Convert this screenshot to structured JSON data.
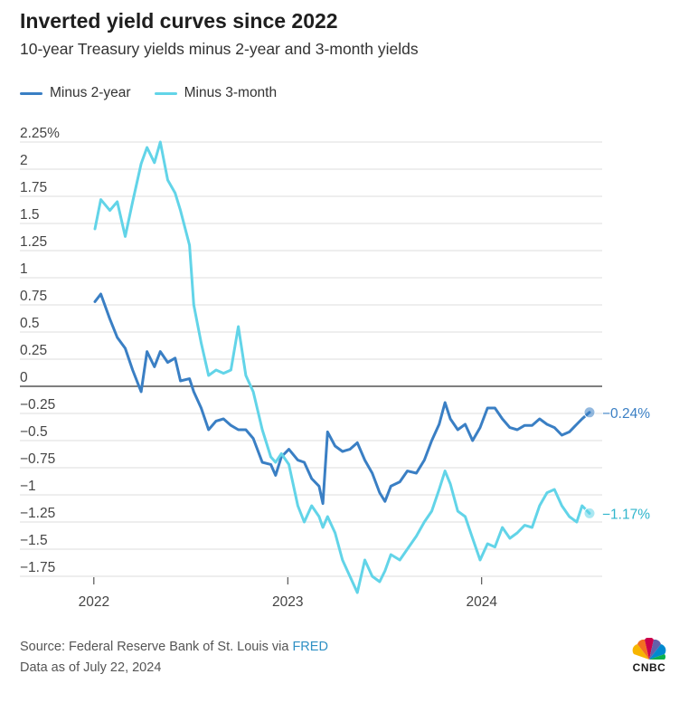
{
  "header": {
    "title": "Inverted yield curves since 2022",
    "subtitle": "10-year Treasury yields minus 2-year and 3-month yields"
  },
  "legend": [
    {
      "label": "Minus 2-year",
      "color": "#3a7fc4"
    },
    {
      "label": "Minus 3-month",
      "color": "#62d4e8"
    }
  ],
  "footer": {
    "source_prefix": "Source: Federal Reserve Bank of St. Louis via ",
    "source_link": "FRED",
    "data_note": "Data as of July 22, 2024"
  },
  "logo": {
    "text": "CNBC",
    "icon": "nbc-peacock-icon"
  },
  "chart_data": {
    "type": "line",
    "title": "Inverted yield curves since 2022",
    "subtitle": "10-year Treasury yields minus 2-year and 3-month yields",
    "xlabel": "",
    "ylabel": "",
    "x_ticks": [
      "2022",
      "2023",
      "2024"
    ],
    "y_ticks": [
      {
        "value": 2.25,
        "label": "2.25%"
      },
      {
        "value": 2,
        "label": "2"
      },
      {
        "value": 1.75,
        "label": "1.75"
      },
      {
        "value": 1.5,
        "label": "1.5"
      },
      {
        "value": 1.25,
        "label": "1.25"
      },
      {
        "value": 1,
        "label": "1"
      },
      {
        "value": 0.75,
        "label": "0.75"
      },
      {
        "value": 0.5,
        "label": "0.5"
      },
      {
        "value": 0.25,
        "label": "0.25"
      },
      {
        "value": 0,
        "label": "0"
      },
      {
        "value": -0.25,
        "label": "−0.25"
      },
      {
        "value": -0.5,
        "label": "−0.5"
      },
      {
        "value": -0.75,
        "label": "−0.75"
      },
      {
        "value": -1,
        "label": "−1"
      },
      {
        "value": -1.25,
        "label": "−1.25"
      },
      {
        "value": -1.5,
        "label": "−1.5"
      },
      {
        "value": -1.75,
        "label": "−1.75"
      }
    ],
    "ylim": [
      -1.9,
      2.3
    ],
    "xlim": [
      "2022-01-03",
      "2024-07-22"
    ],
    "grid": true,
    "legend_position": "top-left",
    "series": [
      {
        "name": "Minus 2-year",
        "color": "#3a7fc4",
        "end_label": "−0.24%",
        "points": [
          [
            "2022-01-03",
            0.78
          ],
          [
            "2022-01-14",
            0.85
          ],
          [
            "2022-01-31",
            0.62
          ],
          [
            "2022-02-14",
            0.45
          ],
          [
            "2022-03-01",
            0.35
          ],
          [
            "2022-03-15",
            0.15
          ],
          [
            "2022-03-31",
            -0.05
          ],
          [
            "2022-04-11",
            0.32
          ],
          [
            "2022-04-25",
            0.18
          ],
          [
            "2022-05-06",
            0.32
          ],
          [
            "2022-05-20",
            0.22
          ],
          [
            "2022-06-03",
            0.26
          ],
          [
            "2022-06-13",
            0.05
          ],
          [
            "2022-06-30",
            0.07
          ],
          [
            "2022-07-08",
            -0.05
          ],
          [
            "2022-07-22",
            -0.2
          ],
          [
            "2022-08-05",
            -0.4
          ],
          [
            "2022-08-19",
            -0.32
          ],
          [
            "2022-09-02",
            -0.3
          ],
          [
            "2022-09-16",
            -0.36
          ],
          [
            "2022-09-30",
            -0.4
          ],
          [
            "2022-10-14",
            -0.4
          ],
          [
            "2022-10-28",
            -0.48
          ],
          [
            "2022-11-14",
            -0.7
          ],
          [
            "2022-11-30",
            -0.72
          ],
          [
            "2022-12-09",
            -0.82
          ],
          [
            "2022-12-20",
            -0.65
          ],
          [
            "2023-01-03",
            -0.58
          ],
          [
            "2023-01-20",
            -0.68
          ],
          [
            "2023-02-01",
            -0.7
          ],
          [
            "2023-02-15",
            -0.85
          ],
          [
            "2023-03-01",
            -0.92
          ],
          [
            "2023-03-08",
            -1.08
          ],
          [
            "2023-03-17",
            -0.42
          ],
          [
            "2023-03-31",
            -0.55
          ],
          [
            "2023-04-14",
            -0.6
          ],
          [
            "2023-04-28",
            -0.58
          ],
          [
            "2023-05-12",
            -0.52
          ],
          [
            "2023-05-26",
            -0.68
          ],
          [
            "2023-06-09",
            -0.8
          ],
          [
            "2023-06-23",
            -0.98
          ],
          [
            "2023-07-03",
            -1.06
          ],
          [
            "2023-07-14",
            -0.92
          ],
          [
            "2023-07-31",
            -0.88
          ],
          [
            "2023-08-14",
            -0.78
          ],
          [
            "2023-08-31",
            -0.8
          ],
          [
            "2023-09-15",
            -0.68
          ],
          [
            "2023-09-29",
            -0.5
          ],
          [
            "2023-10-13",
            -0.35
          ],
          [
            "2023-10-24",
            -0.15
          ],
          [
            "2023-11-03",
            -0.3
          ],
          [
            "2023-11-17",
            -0.4
          ],
          [
            "2023-12-01",
            -0.35
          ],
          [
            "2023-12-15",
            -0.5
          ],
          [
            "2023-12-29",
            -0.38
          ],
          [
            "2024-01-12",
            -0.2
          ],
          [
            "2024-01-26",
            -0.2
          ],
          [
            "2024-02-09",
            -0.3
          ],
          [
            "2024-02-23",
            -0.38
          ],
          [
            "2024-03-08",
            -0.4
          ],
          [
            "2024-03-22",
            -0.36
          ],
          [
            "2024-04-05",
            -0.36
          ],
          [
            "2024-04-19",
            -0.3
          ],
          [
            "2024-05-03",
            -0.35
          ],
          [
            "2024-05-17",
            -0.38
          ],
          [
            "2024-05-31",
            -0.45
          ],
          [
            "2024-06-14",
            -0.42
          ],
          [
            "2024-06-28",
            -0.35
          ],
          [
            "2024-07-08",
            -0.3
          ],
          [
            "2024-07-22",
            -0.24
          ]
        ]
      },
      {
        "name": "Minus 3-month",
        "color": "#62d4e8",
        "end_label": "−1.17%",
        "points": [
          [
            "2022-01-03",
            1.45
          ],
          [
            "2022-01-14",
            1.72
          ],
          [
            "2022-01-31",
            1.62
          ],
          [
            "2022-02-14",
            1.7
          ],
          [
            "2022-03-01",
            1.38
          ],
          [
            "2022-03-15",
            1.7
          ],
          [
            "2022-03-31",
            2.05
          ],
          [
            "2022-04-11",
            2.2
          ],
          [
            "2022-04-25",
            2.06
          ],
          [
            "2022-05-06",
            2.25
          ],
          [
            "2022-05-20",
            1.9
          ],
          [
            "2022-06-03",
            1.78
          ],
          [
            "2022-06-13",
            1.62
          ],
          [
            "2022-06-30",
            1.3
          ],
          [
            "2022-07-08",
            0.75
          ],
          [
            "2022-07-22",
            0.4
          ],
          [
            "2022-08-05",
            0.1
          ],
          [
            "2022-08-19",
            0.15
          ],
          [
            "2022-09-02",
            0.12
          ],
          [
            "2022-09-16",
            0.15
          ],
          [
            "2022-09-30",
            0.55
          ],
          [
            "2022-10-14",
            0.1
          ],
          [
            "2022-10-28",
            -0.05
          ],
          [
            "2022-11-14",
            -0.4
          ],
          [
            "2022-11-30",
            -0.65
          ],
          [
            "2022-12-09",
            -0.7
          ],
          [
            "2022-12-20",
            -0.62
          ],
          [
            "2023-01-03",
            -0.72
          ],
          [
            "2023-01-20",
            -1.1
          ],
          [
            "2023-02-01",
            -1.25
          ],
          [
            "2023-02-15",
            -1.1
          ],
          [
            "2023-03-01",
            -1.2
          ],
          [
            "2023-03-08",
            -1.3
          ],
          [
            "2023-03-17",
            -1.2
          ],
          [
            "2023-03-31",
            -1.35
          ],
          [
            "2023-04-14",
            -1.6
          ],
          [
            "2023-04-28",
            -1.75
          ],
          [
            "2023-05-12",
            -1.9
          ],
          [
            "2023-05-26",
            -1.6
          ],
          [
            "2023-06-09",
            -1.75
          ],
          [
            "2023-06-23",
            -1.8
          ],
          [
            "2023-07-03",
            -1.7
          ],
          [
            "2023-07-14",
            -1.55
          ],
          [
            "2023-07-31",
            -1.6
          ],
          [
            "2023-08-14",
            -1.5
          ],
          [
            "2023-08-31",
            -1.38
          ],
          [
            "2023-09-15",
            -1.25
          ],
          [
            "2023-09-29",
            -1.15
          ],
          [
            "2023-10-13",
            -0.95
          ],
          [
            "2023-10-24",
            -0.78
          ],
          [
            "2023-11-03",
            -0.9
          ],
          [
            "2023-11-17",
            -1.15
          ],
          [
            "2023-12-01",
            -1.2
          ],
          [
            "2023-12-15",
            -1.4
          ],
          [
            "2023-12-29",
            -1.6
          ],
          [
            "2024-01-12",
            -1.45
          ],
          [
            "2024-01-26",
            -1.48
          ],
          [
            "2024-02-09",
            -1.3
          ],
          [
            "2024-02-23",
            -1.4
          ],
          [
            "2024-03-08",
            -1.35
          ],
          [
            "2024-03-22",
            -1.28
          ],
          [
            "2024-04-05",
            -1.3
          ],
          [
            "2024-04-19",
            -1.1
          ],
          [
            "2024-05-03",
            -0.98
          ],
          [
            "2024-05-17",
            -0.95
          ],
          [
            "2024-05-31",
            -1.1
          ],
          [
            "2024-06-14",
            -1.2
          ],
          [
            "2024-06-28",
            -1.25
          ],
          [
            "2024-07-08",
            -1.1
          ],
          [
            "2024-07-22",
            -1.17
          ]
        ]
      }
    ]
  }
}
